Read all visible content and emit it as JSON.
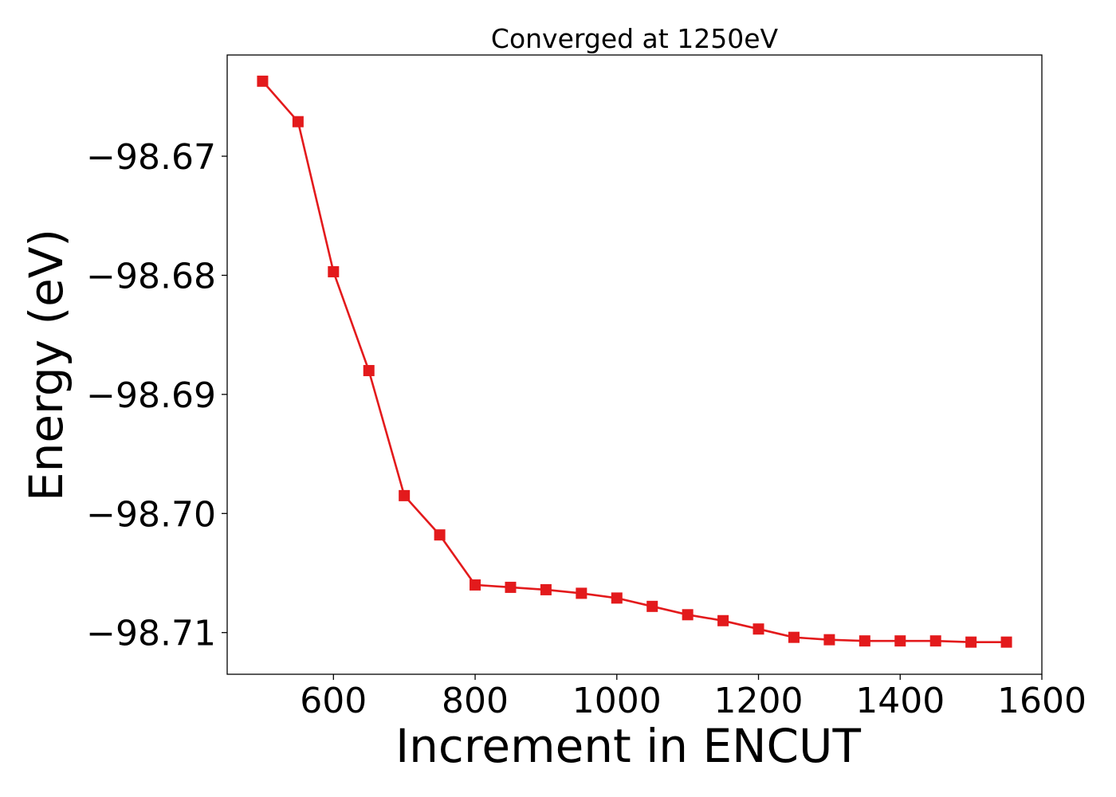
{
  "chart_data": {
    "type": "line",
    "title": "Converged at 1250eV",
    "xlabel": "Increment in ENCUT",
    "ylabel": "Energy (eV)",
    "xlim": [
      450,
      1600
    ],
    "ylim": [
      -98.7135,
      -98.6615
    ],
    "xticks": [
      600,
      800,
      1000,
      1200,
      1400,
      1600
    ],
    "xtick_labels": [
      "600",
      "800",
      "1000",
      "1200",
      "1400",
      "1600"
    ],
    "yticks": [
      -98.67,
      -98.68,
      -98.69,
      -98.7,
      -98.71
    ],
    "ytick_labels": [
      "−98.67",
      "−98.68",
      "−98.69",
      "−98.70",
      "−98.71"
    ],
    "grid": false,
    "marker": "square",
    "color": "#e31a1c",
    "series": [
      {
        "x": [
          500,
          550,
          600,
          650,
          700,
          750,
          800,
          850,
          900,
          950,
          1000,
          1050,
          1100,
          1150,
          1200,
          1250,
          1300,
          1350,
          1400,
          1450,
          1500,
          1550
        ],
        "values": [
          -98.6637,
          -98.6671,
          -98.6797,
          -98.688,
          -98.6985,
          -98.7018,
          -98.706,
          -98.7062,
          -98.7064,
          -98.7067,
          -98.7071,
          -98.7078,
          -98.7085,
          -98.709,
          -98.7097,
          -98.7104,
          -98.7106,
          -98.7107,
          -98.7107,
          -98.7107,
          -98.7108,
          -98.7108
        ]
      }
    ]
  }
}
